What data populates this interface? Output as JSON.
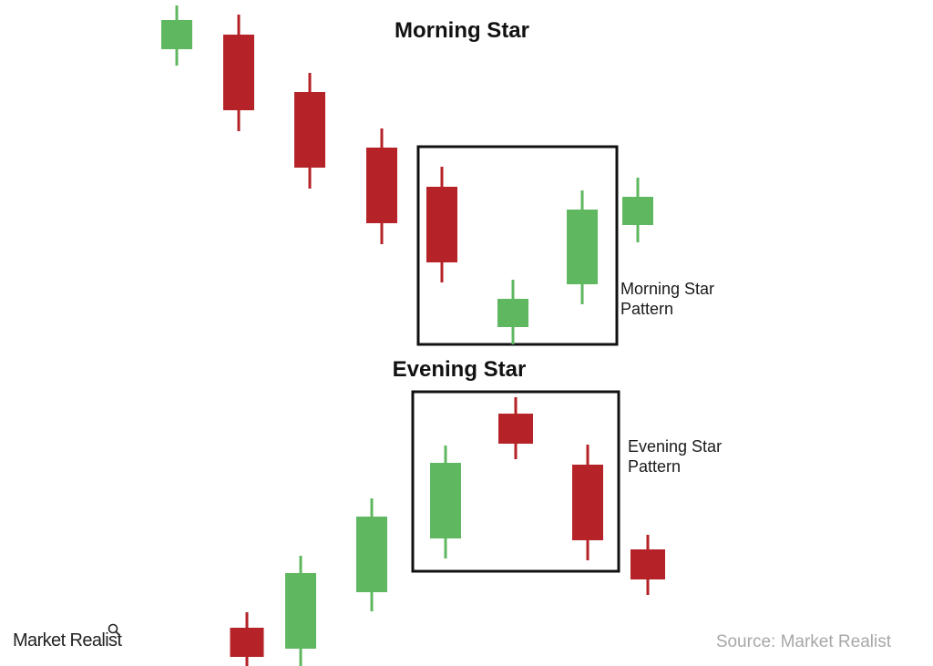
{
  "sections": {
    "morning": {
      "title": "Morning Star",
      "pattern_label_line1": "Morning Star",
      "pattern_label_line2": "Pattern"
    },
    "evening": {
      "title": "Evening Star",
      "pattern_label_line1": "Evening Star",
      "pattern_label_line2": "Pattern"
    }
  },
  "footer": {
    "logo": "Market Realist",
    "logo_icon": "magnifier-icon",
    "source": "Source: Market Realist"
  },
  "colors": {
    "bullish": "#5fb760",
    "bearish": "#b52227",
    "box_border": "#111111"
  },
  "candles": [
    {
      "group": "morning",
      "direction": "bullish"
    },
    {
      "group": "morning",
      "direction": "bearish"
    },
    {
      "group": "morning",
      "direction": "bearish"
    },
    {
      "group": "morning",
      "direction": "bearish"
    },
    {
      "group": "morning",
      "direction": "bearish"
    },
    {
      "group": "morning",
      "direction": "bullish"
    },
    {
      "group": "morning",
      "direction": "bullish"
    },
    {
      "group": "morning",
      "direction": "bullish"
    },
    {
      "group": "evening",
      "direction": "bearish"
    },
    {
      "group": "evening",
      "direction": "bullish"
    },
    {
      "group": "evening",
      "direction": "bullish"
    },
    {
      "group": "evening",
      "direction": "bullish"
    },
    {
      "group": "evening",
      "direction": "bearish"
    },
    {
      "group": "evening",
      "direction": "bearish"
    },
    {
      "group": "evening",
      "direction": "bearish"
    }
  ]
}
